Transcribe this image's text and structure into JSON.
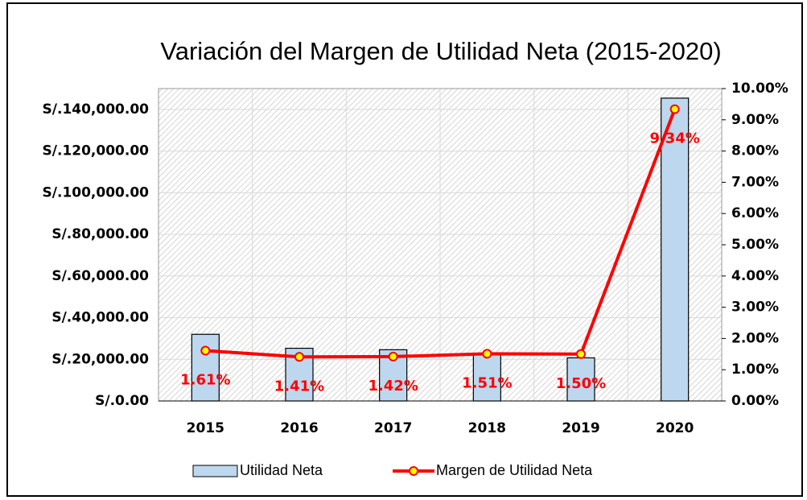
{
  "chart_data": {
    "type": "bar-line",
    "title": "Variación del Margen de Utilidad Neta (2015-2020)",
    "categories": [
      "2015",
      "2016",
      "2017",
      "2018",
      "2019",
      "2020"
    ],
    "series": [
      {
        "name": "Utilidad Neta",
        "type": "bar",
        "color": "#bdd7ee",
        "values": [
          32000,
          25300,
          24600,
          22600,
          20700,
          145400
        ]
      },
      {
        "name": "Margen de Utilidad Neta",
        "type": "line",
        "axis": "y2",
        "color": "#ff0000",
        "marker_color": "#ffff00",
        "values": [
          1.61,
          1.41,
          1.42,
          1.51,
          1.5,
          9.34
        ],
        "value_labels": [
          "1.61%",
          "1.41%",
          "1.42%",
          "1.51%",
          "1.50%",
          "9.34%"
        ]
      }
    ],
    "ylim": [
      0,
      150000
    ],
    "yticks": [
      {
        "value": 0,
        "label": "S/.0.00"
      },
      {
        "value": 20000,
        "label": "S/.20,000.00"
      },
      {
        "value": 40000,
        "label": "S/.40,000.00"
      },
      {
        "value": 60000,
        "label": "S/.60,000.00"
      },
      {
        "value": 80000,
        "label": "S/.80,000.00"
      },
      {
        "value": 100000,
        "label": "S/.100,000.00"
      },
      {
        "value": 120000,
        "label": "S/.120,000.00"
      },
      {
        "value": 140000,
        "label": "S/.140,000.00"
      }
    ],
    "y2lim": [
      0,
      10
    ],
    "y2ticks": [
      {
        "value": 0,
        "label": "0.00%"
      },
      {
        "value": 1,
        "label": "1.00%"
      },
      {
        "value": 2,
        "label": "2.00%"
      },
      {
        "value": 3,
        "label": "3.00%"
      },
      {
        "value": 4,
        "label": "4.00%"
      },
      {
        "value": 5,
        "label": "5.00%"
      },
      {
        "value": 6,
        "label": "6.00%"
      },
      {
        "value": 7,
        "label": "7.00%"
      },
      {
        "value": 8,
        "label": "8.00%"
      },
      {
        "value": 9,
        "label": "9.00%"
      },
      {
        "value": 10,
        "label": "10.00%"
      }
    ],
    "grid": true,
    "legend": "bottom"
  }
}
